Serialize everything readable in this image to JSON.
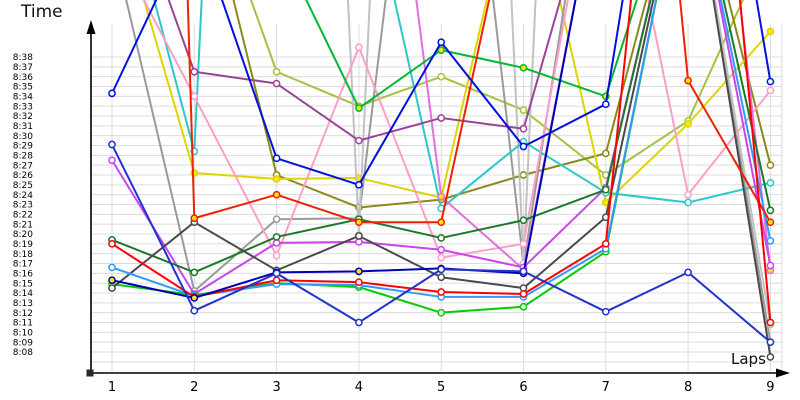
{
  "chart_data": {
    "type": "line",
    "title": "",
    "xlabel": "Laps",
    "ylabel": "Time",
    "x": [
      1,
      2,
      3,
      4,
      5,
      6,
      7,
      8,
      9
    ],
    "x_tick_labels": [
      "1",
      "2",
      "3",
      "4",
      "5",
      "6",
      "7",
      "8",
      "9"
    ],
    "y_tick_labels": [
      "8:38",
      "8:37",
      "8:36",
      "8:35",
      "8:34",
      "8:33",
      "8:32",
      "8:31",
      "8:30",
      "8:29",
      "8:28",
      "8:27",
      "8:26",
      "8:25",
      "8:24",
      "8:23",
      "8:22",
      "8:21",
      "8:20",
      "8:19",
      "8:18",
      "8:17",
      "8:16",
      "8:15",
      "8:14",
      "8:13",
      "8:12",
      "8:11",
      "8:10",
      "8:09",
      "8:08"
    ],
    "y_axis": {
      "min_label": "8:08",
      "max_label": "8:38",
      "tick_interval": "1 minute"
    },
    "value_unit": "decimal minutes after 8:00; values above ~41 are off-scale (line exits plot top)",
    "values_offscale_estimated": true,
    "grid": true,
    "legend_position": "none",
    "marker": "open-circle",
    "series": [
      {
        "name": "yellow-green",
        "color": "#a8c040",
        "marker_fill": "#ffffff",
        "values": [
          55,
          60,
          36.5,
          33,
          36,
          32.6,
          26,
          31.5,
          50
        ]
      },
      {
        "name": "olive",
        "color": "#8a8a1a",
        "marker_fill": "#ffffff",
        "values": [
          70,
          60,
          26,
          22.7,
          23.5,
          26,
          28.2,
          60,
          27
        ]
      },
      {
        "name": "yellow",
        "color": "#ddd500",
        "marker_fill": "#ffe800",
        "values": [
          55,
          26.2,
          25.6,
          25.7,
          23.7,
          60,
          23.2,
          31.2,
          40.6
        ]
      },
      {
        "name": "gray",
        "color": "#9a9a9a",
        "marker_fill": "#ffffff",
        "values": [
          50,
          14.2,
          21.5,
          21.6,
          90,
          16.9,
          70,
          60,
          9
        ]
      },
      {
        "name": "silver",
        "color": "#c2c2c2",
        "marker_fill": "#ffffff",
        "values": [
          200,
          60,
          200,
          19.9,
          200,
          17,
          200,
          60,
          10.8
        ]
      },
      {
        "name": "cyan",
        "color": "#2cc8c8",
        "marker_fill": "#ffffff",
        "values": [
          60,
          28.4,
          200,
          60,
          22.6,
          29.4,
          24.2,
          23.2,
          25.2
        ]
      },
      {
        "name": "pink",
        "color": "#ff9ec8",
        "marker_fill": "#ffffff",
        "values": [
          50,
          34,
          17.8,
          39,
          17.6,
          19,
          65,
          24,
          34.6
        ]
      },
      {
        "name": "magenta-light",
        "color": "#e070e0",
        "marker_fill": "#ffe800",
        "values": [
          60,
          55,
          60,
          90,
          23.8,
          16.4,
          60,
          90,
          16.3
        ]
      },
      {
        "name": "purple",
        "color": "#994499",
        "marker_fill": "#ffffff",
        "values": [
          60,
          36.5,
          35.3,
          29.5,
          31.8,
          30.7,
          60,
          70,
          50
        ]
      },
      {
        "name": "magenta",
        "color": "#cc44ee",
        "marker_fill": "#ffffff",
        "values": [
          27.5,
          13.9,
          19.1,
          19.2,
          18.4,
          16.6,
          24.7,
          60,
          16.8
        ]
      },
      {
        "name": "dark-green",
        "color": "#1a7a2a",
        "marker_fill": "#ffffff",
        "values": [
          19.4,
          16.1,
          19.7,
          21.5,
          19.6,
          21.4,
          24.5,
          60,
          22.4
        ]
      },
      {
        "name": "green-bright",
        "color": "#00b832",
        "marker_fill": "#ffe800",
        "values": [
          60,
          55,
          50,
          32.8,
          38.7,
          36.9,
          34,
          60,
          45
        ]
      },
      {
        "name": "green",
        "color": "#00cc00",
        "marker_fill": "#ffffff",
        "values": [
          14.9,
          13.8,
          15,
          14.6,
          12,
          12.6,
          18.2,
          60,
          45
        ]
      },
      {
        "name": "black",
        "color": "#4a4a4a",
        "marker_fill": "#ffffff",
        "values": [
          14.5,
          21.2,
          16.3,
          19.8,
          15.6,
          14.5,
          21.7,
          60,
          7.5
        ]
      },
      {
        "name": "dodger-blue",
        "color": "#3399ff",
        "marker_fill": "#ffffff",
        "values": [
          16.6,
          13.7,
          14.9,
          14.8,
          13.6,
          13.6,
          18.5,
          60,
          19.3
        ]
      },
      {
        "name": "red-orange",
        "color": "#ee2200",
        "marker_fill": "#ffe800",
        "values": [
          300,
          21.6,
          24,
          21.2,
          21.2,
          60,
          120,
          35.6,
          21.2
        ]
      },
      {
        "name": "red",
        "color": "#ff0000",
        "marker_fill": "#ffffff",
        "values": [
          19,
          13.6,
          15.3,
          15.1,
          14.1,
          13.9,
          19,
          100,
          11
        ]
      },
      {
        "name": "navy",
        "color": "#0000b0",
        "marker_fill": "#ffe800",
        "values": [
          15.3,
          13.5,
          16.1,
          16.2,
          16.5,
          16,
          60,
          100,
          90
        ]
      },
      {
        "name": "blue-mid",
        "color": "#2233cc",
        "marker_fill": "#ffffff",
        "values": [
          29.1,
          12.2,
          16,
          11,
          16.4,
          16.2,
          12.1,
          16.1,
          9
        ]
      },
      {
        "name": "blue",
        "color": "#0011dd",
        "marker_fill": "#ffffff",
        "values": [
          34.3,
          52,
          27.7,
          25,
          39.5,
          28.9,
          33.2,
          85,
          35.5
        ]
      }
    ]
  }
}
